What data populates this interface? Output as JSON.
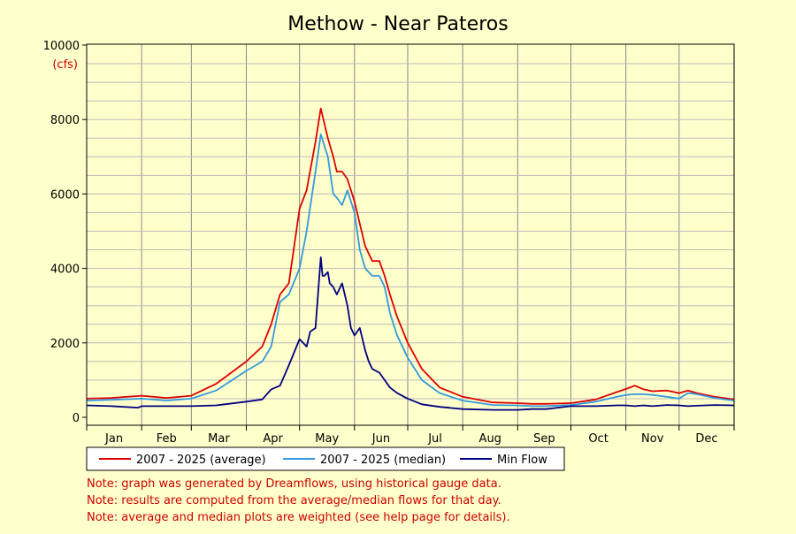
{
  "chart_data": {
    "type": "line",
    "title": "Methow - Near Pateros",
    "ylabel": "(cfs)",
    "ylim": [
      0,
      10000
    ],
    "yticks": [
      0,
      2000,
      4000,
      6000,
      8000,
      10000
    ],
    "x_unit": "day of year",
    "xlim": [
      1,
      366
    ],
    "months": [
      "Jan",
      "Feb",
      "Mar",
      "Apr",
      "May",
      "Jun",
      "Jul",
      "Aug",
      "Sep",
      "Oct",
      "Nov",
      "Dec"
    ],
    "grid": true,
    "legend_position": "bottom",
    "series": [
      {
        "name": "2007 - 2025 (average)",
        "color": "#dd0000",
        "x": [
          1,
          15,
          32,
          46,
          60,
          74,
          91,
          100,
          105,
          110,
          115,
          121,
          125,
          130,
          133,
          137,
          140,
          142,
          145,
          148,
          152,
          155,
          158,
          162,
          166,
          169,
          172,
          176,
          182,
          190,
          200,
          213,
          230,
          244,
          252,
          260,
          274,
          288,
          300,
          305,
          310,
          315,
          320,
          328,
          335,
          340,
          345,
          355,
          366
        ],
        "y": [
          500,
          520,
          580,
          520,
          580,
          900,
          1500,
          1900,
          2500,
          3300,
          3600,
          5600,
          6100,
          7400,
          8300,
          7500,
          7000,
          6600,
          6600,
          6400,
          5800,
          5200,
          4600,
          4200,
          4200,
          3800,
          3300,
          2700,
          2000,
          1300,
          800,
          550,
          400,
          380,
          360,
          360,
          380,
          480,
          680,
          760,
          850,
          750,
          700,
          720,
          650,
          720,
          650,
          550,
          480
        ]
      },
      {
        "name": "2007 - 2025 (median)",
        "color": "#3399dd",
        "x": [
          1,
          15,
          32,
          46,
          60,
          74,
          91,
          100,
          105,
          110,
          115,
          121,
          125,
          130,
          133,
          137,
          140,
          142,
          145,
          148,
          152,
          155,
          158,
          162,
          166,
          169,
          172,
          176,
          182,
          190,
          200,
          213,
          230,
          244,
          252,
          260,
          274,
          288,
          300,
          305,
          310,
          315,
          320,
          328,
          335,
          340,
          345,
          355,
          366
        ],
        "y": [
          450,
          470,
          500,
          450,
          500,
          720,
          1250,
          1500,
          1900,
          3100,
          3300,
          4000,
          5000,
          6600,
          7600,
          7000,
          6000,
          5900,
          5700,
          6100,
          5500,
          4500,
          4000,
          3800,
          3800,
          3500,
          2800,
          2200,
          1600,
          1000,
          650,
          450,
          330,
          320,
          300,
          300,
          330,
          420,
          550,
          600,
          620,
          620,
          600,
          550,
          500,
          650,
          620,
          520,
          450
        ]
      },
      {
        "name": "Min Flow",
        "color": "#000080",
        "x": [
          1,
          15,
          30,
          32,
          46,
          60,
          74,
          91,
          100,
          105,
          110,
          115,
          121,
          123,
          125,
          127,
          130,
          133,
          134,
          135,
          137,
          138,
          140,
          142,
          145,
          148,
          150,
          152,
          155,
          158,
          160,
          162,
          166,
          169,
          172,
          176,
          182,
          190,
          200,
          213,
          230,
          244,
          252,
          260,
          274,
          288,
          300,
          305,
          310,
          315,
          320,
          328,
          335,
          340,
          345,
          355,
          366
        ],
        "y": [
          320,
          300,
          260,
          300,
          300,
          300,
          320,
          420,
          480,
          750,
          850,
          1400,
          2100,
          2000,
          1900,
          2300,
          2400,
          4300,
          3800,
          3800,
          3900,
          3600,
          3500,
          3300,
          3600,
          3000,
          2400,
          2200,
          2400,
          1800,
          1500,
          1300,
          1200,
          1000,
          800,
          650,
          500,
          350,
          280,
          220,
          200,
          200,
          220,
          220,
          300,
          300,
          320,
          320,
          300,
          320,
          300,
          330,
          320,
          300,
          310,
          330,
          320
        ]
      }
    ]
  },
  "notes": [
    "Note: graph was generated by Dreamflows, using historical gauge data.",
    "Note: results are computed from the average/median flows for that day.",
    "Note: average and median plots are weighted (see help page for details)."
  ]
}
